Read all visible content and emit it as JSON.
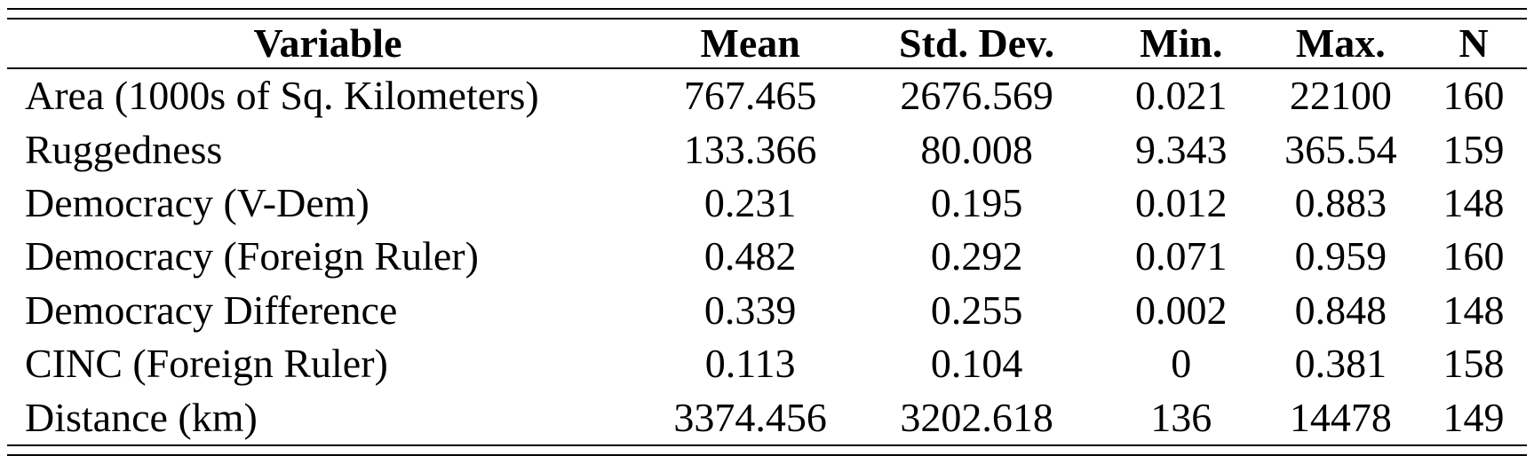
{
  "document": {
    "type": "summary-statistics-table"
  },
  "table": {
    "columns": [
      "Variable",
      "Mean",
      "Std. Dev.",
      "Min.",
      "Max.",
      "N"
    ],
    "rows": [
      [
        "Area (1000s of Sq. Kilometers)",
        "767.465",
        "2676.569",
        "0.021",
        "22100",
        "160"
      ],
      [
        "Ruggedness",
        "133.366",
        "80.008",
        "9.343",
        "365.54",
        "159"
      ],
      [
        "Democracy (V-Dem)",
        "0.231",
        "0.195",
        "0.012",
        "0.883",
        "148"
      ],
      [
        "Democracy (Foreign Ruler)",
        "0.482",
        "0.292",
        "0.071",
        "0.959",
        "160"
      ],
      [
        "Democracy Difference",
        "0.339",
        "0.255",
        "0.002",
        "0.848",
        "148"
      ],
      [
        "CINC (Foreign Ruler)",
        "0.113",
        "0.104",
        "0",
        "0.381",
        "158"
      ],
      [
        "Distance (km)",
        "3374.456",
        "3202.618",
        "136",
        "14478",
        "149"
      ]
    ]
  },
  "colors": {
    "text": "#000000",
    "background": "#ffffff",
    "rule": "#000000"
  }
}
